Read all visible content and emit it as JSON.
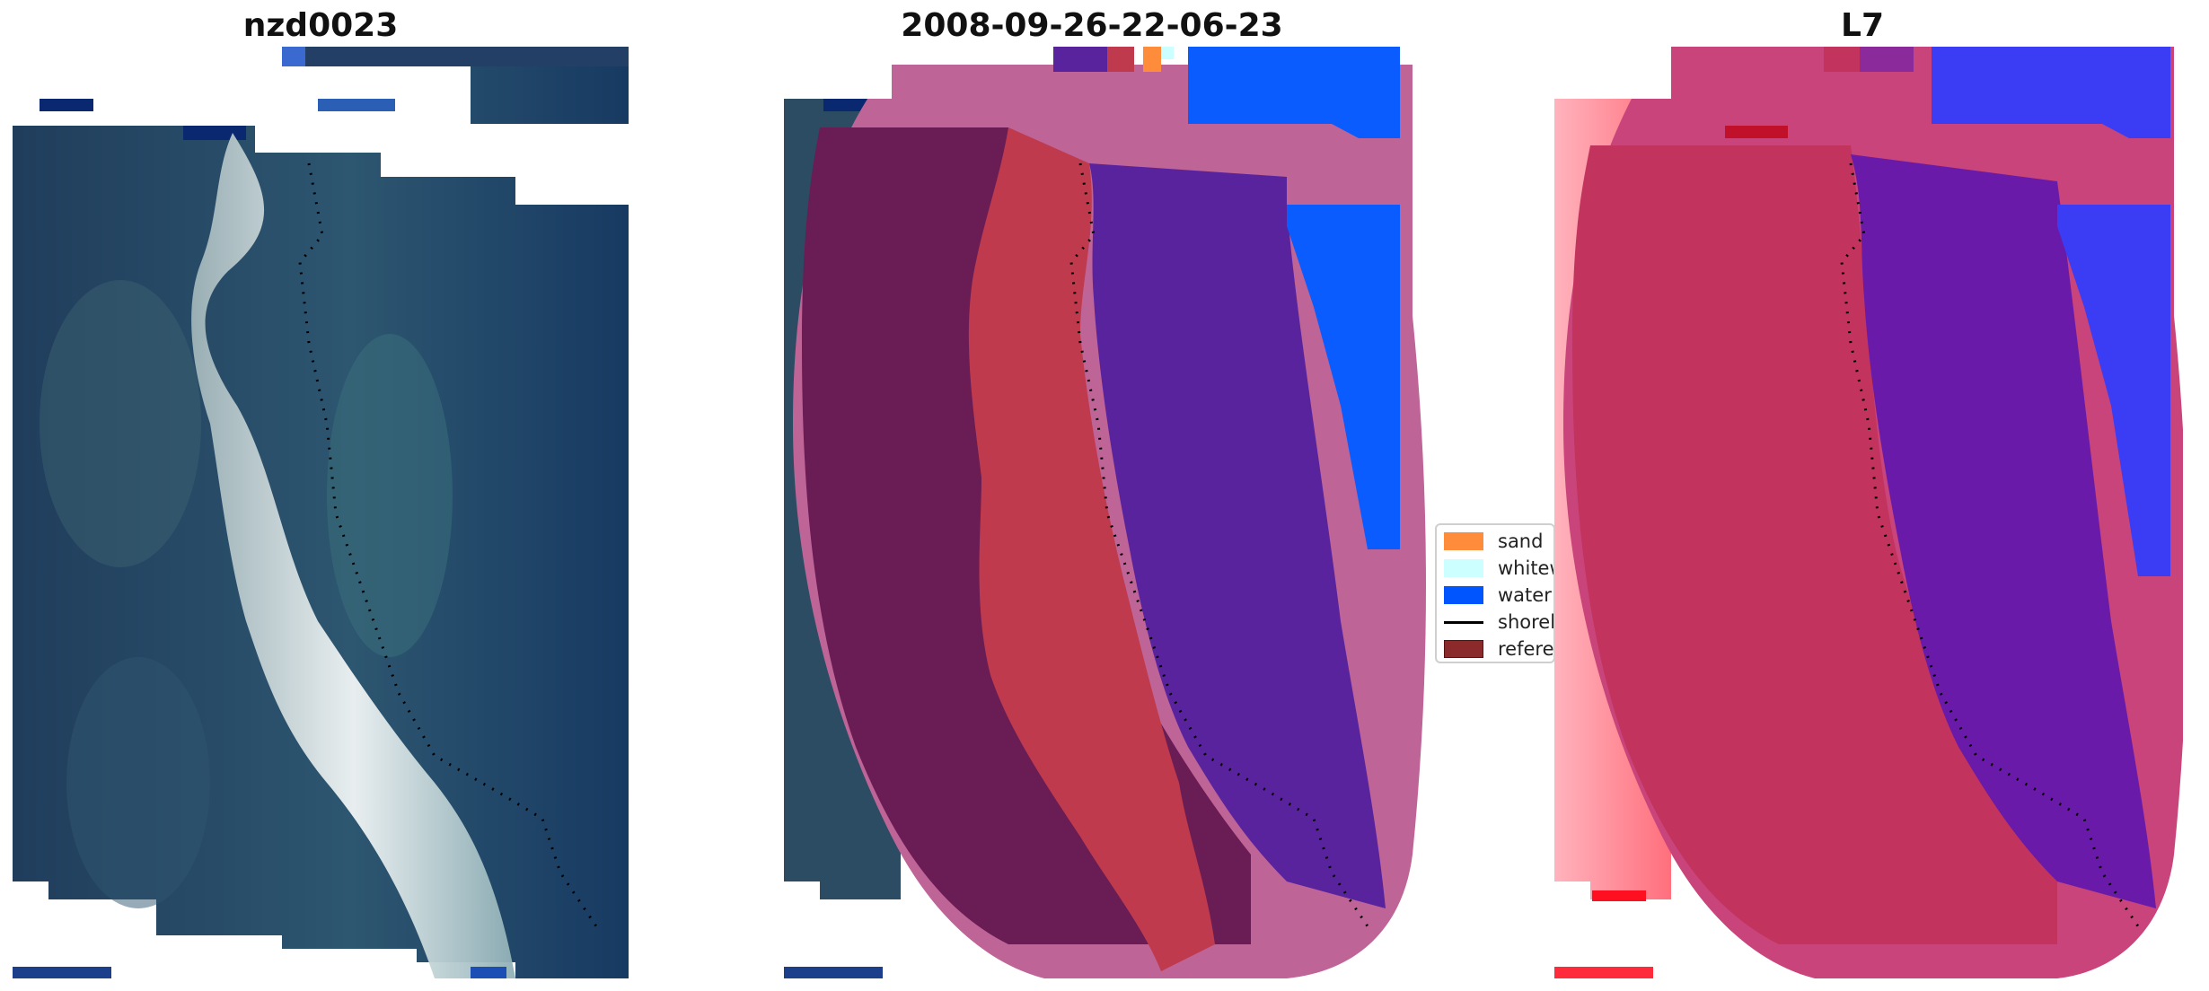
{
  "panels": [
    {
      "title": "nzd0023"
    },
    {
      "title": "2008-09-26-22-06-23"
    },
    {
      "title": "L7"
    }
  ],
  "legend": {
    "items": [
      {
        "label": "sand",
        "kind": "patch",
        "color": "#ff8c3a"
      },
      {
        "label": "whitewater",
        "kind": "patch",
        "color": "#ccffff"
      },
      {
        "label": "water",
        "kind": "patch",
        "color": "#0055ff"
      },
      {
        "label": "shoreline",
        "kind": "line",
        "color": "#000000"
      },
      {
        "label": "reference shoreline",
        "kind": "patch",
        "color": "#8b2a2a"
      }
    ]
  },
  "colors": {
    "deep_water": "#143a66",
    "beach_white": "#e8eef0",
    "land_overlay": "#6a1c55",
    "sand_overlay": "#bf3a4c",
    "water_overlay": "#5a239e",
    "buffer_pink": "#bf6497",
    "water_class": "#0a5cff",
    "red_index": "#ff5a6a"
  }
}
